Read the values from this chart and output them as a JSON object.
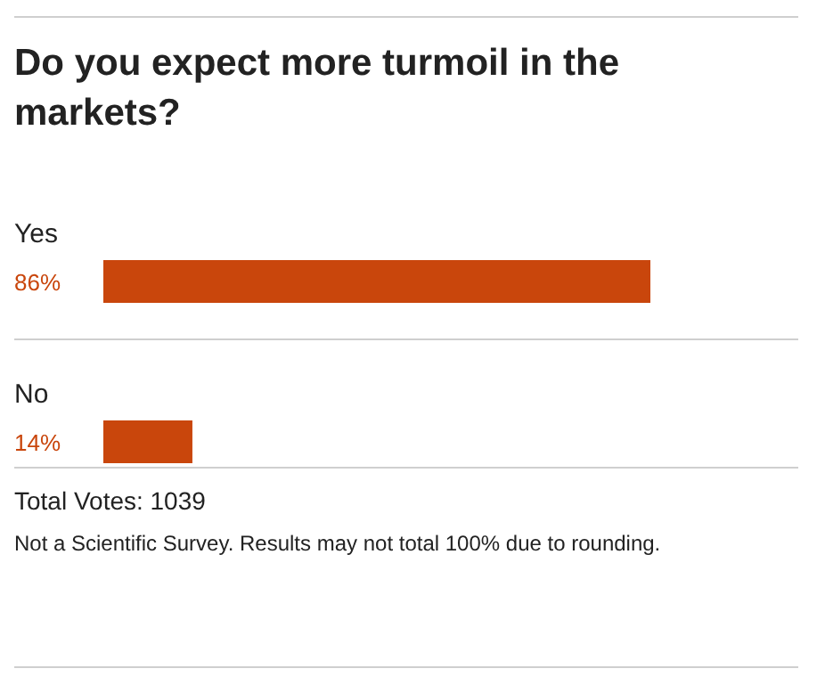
{
  "chart_data": {
    "type": "bar",
    "orientation": "horizontal",
    "title": "Do you expect more turmoil in the markets?",
    "categories": [
      "Yes",
      "No"
    ],
    "values": [
      86,
      14
    ],
    "value_labels": [
      "86%",
      "14%"
    ],
    "color": "#c9460c",
    "tick_labels": false,
    "annotations": [
      "Total Votes: 1039",
      "Not a Scientific Survey. Results may not total 100% due to rounding."
    ]
  }
}
